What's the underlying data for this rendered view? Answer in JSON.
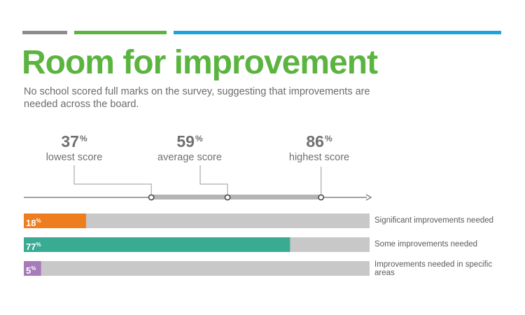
{
  "colors": {
    "title": "#5bb440",
    "deco": [
      "#8c8c8c",
      "#5bb440",
      "#1aa3dd"
    ],
    "track": "#c8c8c8",
    "axis": "#6a6a6a",
    "range_band": "#b4b4b4",
    "significant": "#ee7d1f",
    "some": "#3aab93",
    "specific": "#a77ab9"
  },
  "title": "Room for improvement",
  "subtitle": "No school scored full marks on the survey, suggesting that improvements are needed across the board.",
  "chart_data": [
    {
      "type": "scale",
      "axis_range": [
        0,
        100
      ],
      "unit": "%",
      "markers": [
        {
          "value": 37,
          "label": "lowest score"
        },
        {
          "value": 59,
          "label": "average score"
        },
        {
          "value": 86,
          "label": "highest score"
        }
      ]
    },
    {
      "type": "bar",
      "orientation": "horizontal",
      "unit": "%",
      "xlim": [
        0,
        100
      ],
      "categories": [
        "Significant improvements needed",
        "Some improvements needed",
        "Improvements needed in specific areas"
      ],
      "values": [
        18,
        77,
        5
      ],
      "colors": [
        "#ee7d1f",
        "#3aab93",
        "#a77ab9"
      ]
    }
  ]
}
